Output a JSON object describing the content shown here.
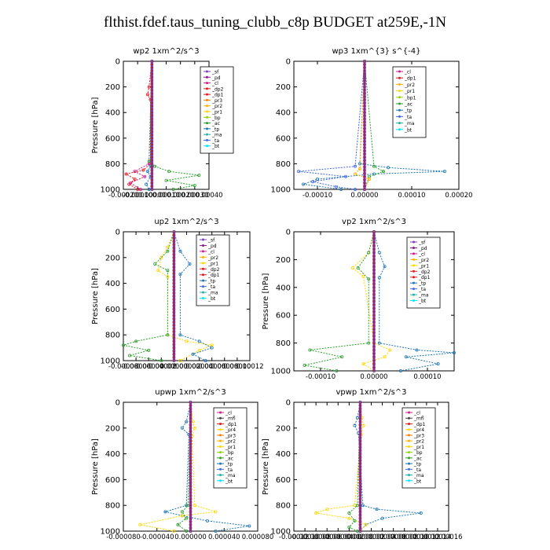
{
  "figure": {
    "title": "flthist.fdef.taus_tuning_clubb_c8p  BUDGET at259E,-1N"
  },
  "colors": {
    "sf": "#7b3fbf",
    "pd": "#8b1a8b",
    "cl": "#d01c8b",
    "dp2": "#e41a1c",
    "dp1": "#e41a1c",
    "pr3": "#ff7f00",
    "pr2": "#ffb000",
    "pr1": "#ffd700",
    "bp": "#8fd400",
    "ac": "#2ca02c",
    "tp": "#1f77b4",
    "ta": "#4169e1",
    "ma": "#20b2aa",
    "bt": "#00e5ff"
  },
  "chart_data": [
    {
      "type": "line",
      "title": "wp2   1xm^2/s^3",
      "ylabel": "Pressure  [hPa]",
      "ylim": [
        1000,
        0
      ],
      "yticks": [
        "0",
        "200",
        "400",
        "600",
        "800",
        "1000"
      ],
      "xlim": [
        -0.0002,
        0.0004
      ],
      "xticks": [
        "-0.00020",
        "-0.00010",
        "0.00000",
        "0.00010",
        "0.00020",
        "0.00030",
        "0.00040"
      ],
      "grid": false,
      "legend": [
        "_sf",
        "_pd",
        "_cl",
        "_dp2",
        "_dp1",
        "_pr3",
        "_pr2",
        "_pr1",
        "_bp",
        "_ac",
        "_tp",
        "_ma",
        "_ta",
        "_bt"
      ],
      "legend_position": "top-right",
      "series": [
        {
          "key": "dp1",
          "color": "#e41a1c",
          "pressure": [
            0,
            200,
            260,
            300,
            800,
            850,
            880,
            920,
            960,
            1000
          ],
          "values": [
            0,
            -2e-05,
            -3e-05,
            -1e-05,
            -1e-05,
            -6e-05,
            -0.00018,
            -0.00012,
            -0.00016,
            -0.0001
          ]
        },
        {
          "key": "dp2",
          "color": "#d01c8b",
          "pressure": [
            0,
            800,
            860,
            900,
            950,
            1000
          ],
          "values": [
            0,
            -2e-05,
            -0.00012,
            -5e-05,
            -0.00015,
            -8e-05
          ]
        },
        {
          "key": "ac",
          "color": "#2ca02c",
          "pressure": [
            0,
            780,
            820,
            860,
            890,
            930,
            970,
            1000
          ],
          "values": [
            0,
            -2e-05,
            2e-05,
            0.00012,
            0.00033,
            0.0001,
            0.0003,
            0.00015
          ]
        },
        {
          "key": "tp",
          "color": "#1f77b4",
          "pressure": [
            0,
            820,
            860,
            900,
            960,
            1000
          ],
          "values": [
            0,
            -1e-05,
            -3e-05,
            -1e-05,
            -4e-05,
            -2e-05
          ]
        },
        {
          "key": "pd",
          "color": "#8b1a8b",
          "pressure": [
            0,
            1000
          ],
          "values": [
            0,
            0
          ]
        }
      ]
    },
    {
      "type": "line",
      "title": "wp3   1xm^{3} s^{-4}",
      "ylabel": "",
      "ylim": [
        1000,
        0
      ],
      "yticks": [
        "0",
        "200",
        "400",
        "600",
        "800",
        "1000"
      ],
      "xlim": [
        -0.00015,
        0.0002
      ],
      "xticks": [
        "-0.00010",
        "0.00000",
        "0.00010",
        "0.00020"
      ],
      "grid": false,
      "legend": [
        "_cl",
        "_dp1",
        "_pr2",
        "_pr1",
        "_bp1",
        "_ac",
        "_tp",
        "_ta",
        "_ma",
        "_bt"
      ],
      "legend_position": "top-right",
      "series": [
        {
          "key": "tp",
          "color": "#1f77b4",
          "pressure": [
            0,
            800,
            830,
            860,
            880,
            920,
            960,
            1000
          ],
          "values": [
            0,
            -1e-05,
            5e-05,
            0.00017,
            2e-05,
            -0.0001,
            -0.00013,
            -5e-05
          ]
        },
        {
          "key": "ta",
          "color": "#4169e1",
          "pressure": [
            0,
            820,
            860,
            900,
            940,
            980,
            1000
          ],
          "values": [
            0,
            -2e-05,
            -0.00014,
            -4e-05,
            -0.00011,
            -6e-05,
            -2e-05
          ]
        },
        {
          "key": "ac",
          "color": "#2ca02c",
          "pressure": [
            0,
            820,
            860,
            900,
            1000
          ],
          "values": [
            0,
            2e-05,
            4e-05,
            1e-05,
            0
          ]
        },
        {
          "key": "pr2",
          "color": "#ffb000",
          "pressure": [
            0,
            840,
            880,
            920,
            1000
          ],
          "values": [
            0,
            -1e-05,
            -2e-05,
            1e-05,
            0
          ]
        },
        {
          "key": "dp1",
          "color": "#b22222",
          "pressure": [
            0,
            1000
          ],
          "values": [
            0,
            0
          ]
        }
      ]
    },
    {
      "type": "line",
      "title": "up2   1xm^2/s^3",
      "ylabel": "Pressure  [hPa]",
      "ylim": [
        1000,
        0
      ],
      "yticks": [
        "0",
        "200",
        "400",
        "600",
        "800",
        "1000"
      ],
      "xlim": [
        -8e-05,
        0.00012
      ],
      "xticks": [
        "-0.00008",
        "-0.00004",
        "0.00000",
        "0.00004",
        "0.00008",
        "0.00012"
      ],
      "xticks_drawn": [
        "-0.00008",
        "-0.00006",
        "-0.00004",
        "-0.00002",
        "0.00000",
        "0.00002",
        "0.00004",
        "0.00006",
        "0.00008",
        "0.00010",
        "0.00012"
      ],
      "grid": false,
      "legend": [
        "_sf",
        "_pd",
        "_cl",
        "_pr2",
        "_pr1",
        "_dp2",
        "_dp1",
        "_tp",
        "_ta",
        "_ma",
        "_bt"
      ],
      "legend_position": "top-right",
      "series": [
        {
          "key": "pr1",
          "color": "#ffd700",
          "pressure": [
            0,
            120,
            200,
            300,
            350,
            800,
            850,
            880,
            920,
            1000
          ],
          "values": [
            0,
            -1e-05,
            -2e-05,
            -2.5e-05,
            -1e-05,
            -1e-05,
            2e-05,
            6e-05,
            4e-05,
            1e-05
          ]
        },
        {
          "key": "ac",
          "color": "#2ca02c",
          "pressure": [
            0,
            150,
            250,
            300,
            800,
            850,
            880,
            920,
            960,
            1000
          ],
          "values": [
            0,
            -1e-05,
            -3e-05,
            -1e-05,
            -1e-05,
            -6e-05,
            -8e-05,
            -4e-05,
            -7e-05,
            -2e-05
          ]
        },
        {
          "key": "tp",
          "color": "#1f77b4",
          "pressure": [
            0,
            150,
            250,
            330,
            800,
            850,
            900,
            950,
            1000
          ],
          "values": [
            0,
            1e-05,
            2.5e-05,
            1e-05,
            1e-05,
            4e-05,
            6e-05,
            3e-05,
            5e-05
          ]
        },
        {
          "key": "dp1",
          "color": "#e41a1c",
          "pressure": [
            0,
            1000
          ],
          "values": [
            0,
            0
          ]
        }
      ]
    },
    {
      "type": "line",
      "title": "vp2   1xm^2/s^3",
      "ylabel": "Pressure  [hPa]",
      "ylim": [
        1000,
        0
      ],
      "yticks": [
        "0",
        "200",
        "400",
        "600",
        "800",
        "1000"
      ],
      "xlim": [
        -0.00015,
        0.00015
      ],
      "xticks": [
        "-0.00010",
        "0.00000",
        "0.00010"
      ],
      "grid": false,
      "legend": [
        "_sf",
        "_pd",
        "_cl",
        "_pr2",
        "_pr1",
        "_dp2",
        "_dp1",
        "_tp",
        "_ta",
        "_ma",
        "_bt"
      ],
      "legend_position": "top-right",
      "series": [
        {
          "key": "pr1",
          "color": "#ffd700",
          "pressure": [
            0,
            150,
            260,
            320,
            800,
            850,
            900,
            950,
            1000
          ],
          "values": [
            0,
            -1e-05,
            -4e-05,
            -2e-05,
            0,
            3e-05,
            2e-05,
            -2e-05,
            0
          ]
        },
        {
          "key": "ac",
          "color": "#2ca02c",
          "pressure": [
            0,
            150,
            260,
            340,
            800,
            850,
            900,
            960,
            1000
          ],
          "values": [
            0,
            -1e-05,
            -3e-05,
            -1e-05,
            -1e-05,
            -0.00012,
            -6e-05,
            -0.00013,
            -7e-05
          ]
        },
        {
          "key": "tp",
          "color": "#1f77b4",
          "pressure": [
            0,
            150,
            250,
            330,
            800,
            850,
            870,
            900,
            950,
            1000
          ],
          "values": [
            0,
            1e-05,
            2e-05,
            1e-05,
            1e-05,
            8e-05,
            0.00015,
            6e-05,
            0.00012,
            5e-05
          ]
        },
        {
          "key": "dp1",
          "color": "#e41a1c",
          "pressure": [
            0,
            1000
          ],
          "values": [
            0,
            0
          ]
        }
      ]
    },
    {
      "type": "line",
      "title": "upwp   1xm^2/s^3",
      "ylabel": "Pressure  [hPa]",
      "ylim": [
        1000,
        0
      ],
      "yticks": [
        "0",
        "200",
        "400",
        "600",
        "800",
        "1000"
      ],
      "xlim": [
        -8e-05,
        8e-05
      ],
      "xticks": [
        "-0.000080",
        "-0.000040",
        "0.000000",
        "0.000040",
        "0.000080"
      ],
      "grid": false,
      "legend": [
        "_cl",
        "_mfl",
        "_dp1",
        "_pr4",
        "_pr3",
        "_pr2",
        "_pr1",
        "_bp",
        "_ac",
        "_tp",
        "_ta",
        "_ma",
        "_bt"
      ],
      "legend_position": "top-right",
      "series": [
        {
          "key": "tp",
          "color": "#1f77b4",
          "pressure": [
            0,
            150,
            200,
            250,
            800,
            850,
            880,
            920,
            960,
            1000
          ],
          "values": [
            0,
            -5e-06,
            -1e-05,
            -2e-06,
            -5e-06,
            -3e-05,
            -1e-05,
            2e-05,
            7e-05,
            3e-05
          ]
        },
        {
          "key": "pr1",
          "color": "#ffd700",
          "pressure": [
            0,
            150,
            200,
            260,
            800,
            850,
            880,
            950,
            1000
          ],
          "values": [
            0,
            3e-06,
            5e-06,
            2e-06,
            5e-06,
            3e-05,
            -1e-05,
            -6e-05,
            -2e-05
          ]
        },
        {
          "key": "ac",
          "color": "#2ca02c",
          "pressure": [
            0,
            800,
            850,
            900,
            950,
            1000
          ],
          "values": [
            0,
            -3e-06,
            -1e-05,
            -5e-06,
            -1.5e-05,
            -5e-06
          ]
        },
        {
          "key": "pd",
          "color": "#8b1a8b",
          "pressure": [
            0,
            1000
          ],
          "values": [
            0,
            0
          ]
        }
      ]
    },
    {
      "type": "line",
      "title": "vpwp   1xm^2/s^3",
      "ylabel": "Pressure  [hPa]",
      "ylim": [
        1000,
        0
      ],
      "yticks": [
        "0",
        "200",
        "400",
        "600",
        "800",
        "1000"
      ],
      "xlim": [
        -0.00012,
        0.00016
      ],
      "xticks": [
        "-0.00012",
        "-0.00008",
        "-0.00004",
        "0.00000",
        "0.00004",
        "0.00008",
        "0.00012",
        "0.00016"
      ],
      "xticks_drawn": [
        "-0.00012",
        "-0.00010",
        "-0.00008",
        "-0.00006",
        "-0.00004",
        "-0.00002",
        "0.00000",
        "0.00002",
        "0.00004",
        "0.00006",
        "0.00008",
        "0.00010",
        "0.00012",
        "0.00014",
        "0.00016"
      ],
      "grid": false,
      "legend": [
        "_cl",
        "_mfl",
        "_dp1",
        "_pr4",
        "_pr3",
        "_pr2",
        "_pr1",
        "_bp",
        "_ac",
        "_tp",
        "_ta",
        "_ma",
        "_bt"
      ],
      "legend_position": "top-right",
      "series": [
        {
          "key": "tp",
          "color": "#1f77b4",
          "pressure": [
            0,
            120,
            180,
            240,
            800,
            830,
            860,
            900,
            950,
            1000
          ],
          "values": [
            0,
            -5e-06,
            -1e-05,
            -3e-06,
            5e-06,
            3e-05,
            0.00011,
            4e-05,
            1e-05,
            0
          ]
        },
        {
          "key": "pr1",
          "color": "#ffd700",
          "pressure": [
            0,
            120,
            180,
            250,
            800,
            830,
            860,
            900,
            950,
            1000
          ],
          "values": [
            0,
            3e-06,
            6e-06,
            2e-06,
            -1e-05,
            -6e-05,
            -8e-05,
            -2e-05,
            1e-05,
            0
          ]
        },
        {
          "key": "ac",
          "color": "#2ca02c",
          "pressure": [
            0,
            800,
            860,
            920,
            970,
            1000
          ],
          "values": [
            0,
            -5e-06,
            -2e-05,
            -1e-05,
            -2e-05,
            -5e-06
          ]
        },
        {
          "key": "pd",
          "color": "#8b1a8b",
          "pressure": [
            0,
            1000
          ],
          "values": [
            0,
            0
          ]
        }
      ]
    }
  ]
}
